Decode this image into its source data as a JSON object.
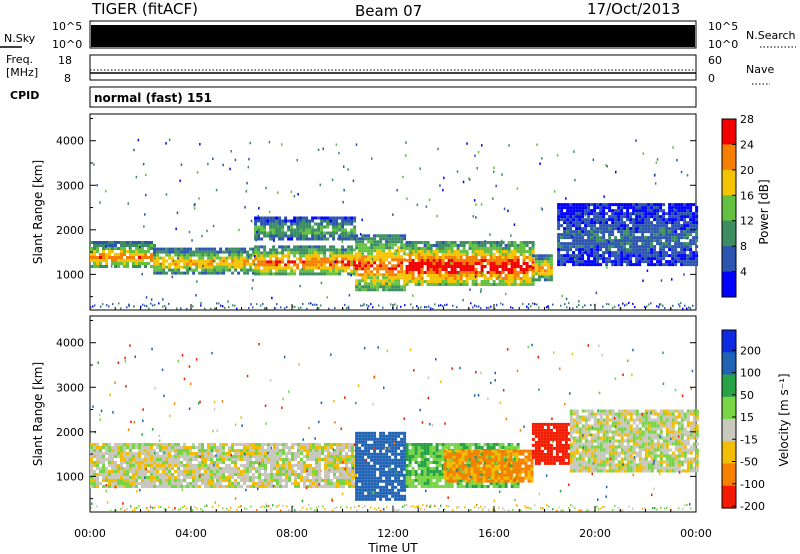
{
  "header": {
    "station": "TIGER (fitACF)",
    "beam": "Beam 07",
    "date": "17/Oct/2013"
  },
  "strip_panels": {
    "nsky": {
      "label": "N.Sky",
      "ticks": [
        "10^5",
        "10^0"
      ],
      "right_ticks": [
        "10^5",
        "10^0"
      ],
      "right_label": "N.Search"
    },
    "freq": {
      "label_line1": "Freq.",
      "label_line2": "[MHz]",
      "ticks": [
        "18",
        "8"
      ],
      "right_ticks": [
        "60",
        "0"
      ],
      "right_label": "Nave"
    },
    "cpid": {
      "label": "CPID",
      "text": "normal (fast) 151"
    }
  },
  "colors": {
    "power_scale": [
      "#0000ff",
      "#2c55b0",
      "#3c8e62",
      "#63c040",
      "#f4c400",
      "#f57f00",
      "#f40000"
    ],
    "velocity_scale": [
      "#0e2be2",
      "#2063b4",
      "#27a345",
      "#79d548",
      "#c8c8be",
      "#f2bd05",
      "#f68000",
      "#f31a00"
    ]
  },
  "chart_data": [
    {
      "type": "heatmap",
      "title": "Power",
      "ylabel": "Slant Range [km]",
      "xlabel": "Time UT",
      "x_ticks": [
        "00:00",
        "04:00",
        "08:00",
        "12:00",
        "16:00",
        "20:00",
        "00:00"
      ],
      "y_ticks": [
        1000,
        2000,
        3000,
        4000
      ],
      "ylim": [
        200,
        4600
      ],
      "xlim_hours": [
        0,
        24
      ],
      "colorbar": {
        "label": "Power [dB]",
        "ticks": [
          4,
          8,
          12,
          16,
          20,
          24,
          28
        ],
        "range": [
          0,
          30
        ]
      },
      "bands": [
        {
          "x": [
            0,
            2.5
          ],
          "y": [
            1150,
            1750
          ],
          "peak_power": 24
        },
        {
          "x": [
            2.5,
            6.5
          ],
          "y": [
            1050,
            1600
          ],
          "peak_power": 22
        },
        {
          "x": [
            6.5,
            10.5
          ],
          "y": [
            1000,
            1650
          ],
          "peak_power": 26
        },
        {
          "x": [
            10.5,
            12.5
          ],
          "y": [
            650,
            1900
          ],
          "peak_power": 26
        },
        {
          "x": [
            12.5,
            17.5
          ],
          "y": [
            750,
            1750
          ],
          "peak_power": 30
        },
        {
          "x": [
            17.5,
            18.3
          ],
          "y": [
            900,
            1450
          ],
          "peak_power": 24
        },
        {
          "x": [
            6.5,
            10.5
          ],
          "y": [
            1800,
            2300
          ],
          "peak_power": 14
        },
        {
          "x": [
            18.5,
            24
          ],
          "y": [
            1200,
            2600
          ],
          "peak_power": 8
        }
      ]
    },
    {
      "type": "heatmap",
      "title": "Velocity",
      "ylabel": "Slant Range [km]",
      "xlabel": "Time UT",
      "x_ticks": [
        "00:00",
        "04:00",
        "08:00",
        "12:00",
        "16:00",
        "20:00",
        "00:00"
      ],
      "y_ticks": [
        1000,
        2000,
        3000,
        4000
      ],
      "ylim": [
        200,
        4600
      ],
      "xlim_hours": [
        0,
        24
      ],
      "colorbar": {
        "label": "Velocity [m s⁻¹]",
        "ticks": [
          200,
          100,
          50,
          15,
          -15,
          -50,
          -100,
          -200
        ],
        "range": [
          -250,
          250
        ]
      },
      "bands": [
        {
          "x": [
            0,
            10.5
          ],
          "y": [
            750,
            1750
          ],
          "velocity": 0
        },
        {
          "x": [
            10.5,
            12.5
          ],
          "y": [
            500,
            2000
          ],
          "velocity": 150
        },
        {
          "x": [
            12.5,
            17
          ],
          "y": [
            800,
            1750
          ],
          "velocity": 50
        },
        {
          "x": [
            14,
            17.5
          ],
          "y": [
            900,
            1600
          ],
          "velocity": -60
        },
        {
          "x": [
            17.5,
            19
          ],
          "y": [
            1300,
            2200
          ],
          "velocity": -200
        },
        {
          "x": [
            19,
            24
          ],
          "y": [
            1100,
            2500
          ],
          "velocity": 0
        }
      ]
    }
  ]
}
